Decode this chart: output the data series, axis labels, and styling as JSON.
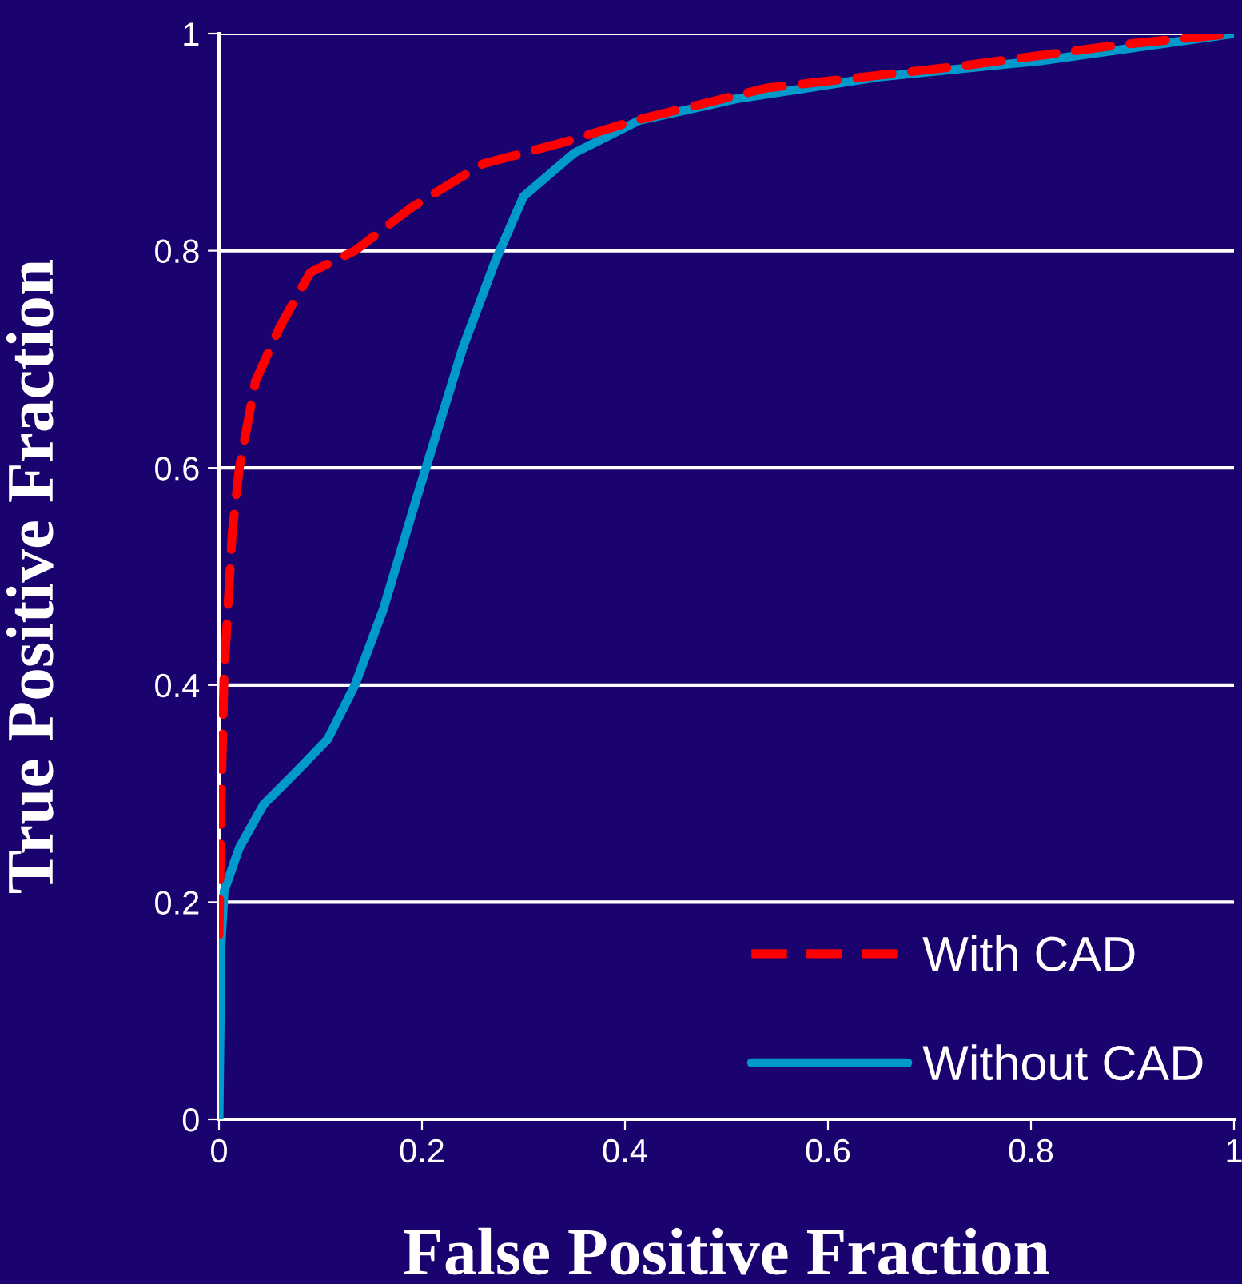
{
  "chart_data": {
    "type": "line",
    "xlabel": "False Positive Fraction",
    "ylabel": "True Positive Fraction",
    "xlim": [
      0,
      1
    ],
    "ylim": [
      0,
      1
    ],
    "xticks": [
      0,
      0.2,
      0.4,
      0.6,
      0.8,
      1
    ],
    "yticks": [
      0,
      0.2,
      0.4,
      0.6,
      0.8,
      1
    ],
    "grid": "y",
    "legend": "bottom right",
    "series": [
      {
        "name": "With CAD",
        "color": "#ff0000",
        "line_style": "dashed",
        "x": [
          0,
          0.002,
          0.005,
          0.013,
          0.02,
          0.036,
          0.06,
          0.09,
          0.134,
          0.19,
          0.26,
          0.34,
          0.41,
          0.54,
          0.73,
          0.89,
          1
        ],
        "values": [
          0.17,
          0.29,
          0.41,
          0.54,
          0.6,
          0.68,
          0.73,
          0.78,
          0.8,
          0.84,
          0.88,
          0.9,
          0.92,
          0.95,
          0.97,
          0.99,
          1
        ]
      },
      {
        "name": "Without CAD",
        "color": "#0099cc",
        "line_style": "solid",
        "x": [
          0,
          0.002,
          0.005,
          0.02,
          0.044,
          0.076,
          0.107,
          0.134,
          0.162,
          0.194,
          0.217,
          0.24,
          0.272,
          0.3,
          0.35,
          0.414,
          0.51,
          0.65,
          0.81,
          1
        ],
        "values": [
          0,
          0.16,
          0.21,
          0.25,
          0.29,
          0.32,
          0.35,
          0.4,
          0.47,
          0.57,
          0.64,
          0.71,
          0.79,
          0.85,
          0.89,
          0.92,
          0.94,
          0.96,
          0.975,
          1
        ]
      }
    ]
  }
}
